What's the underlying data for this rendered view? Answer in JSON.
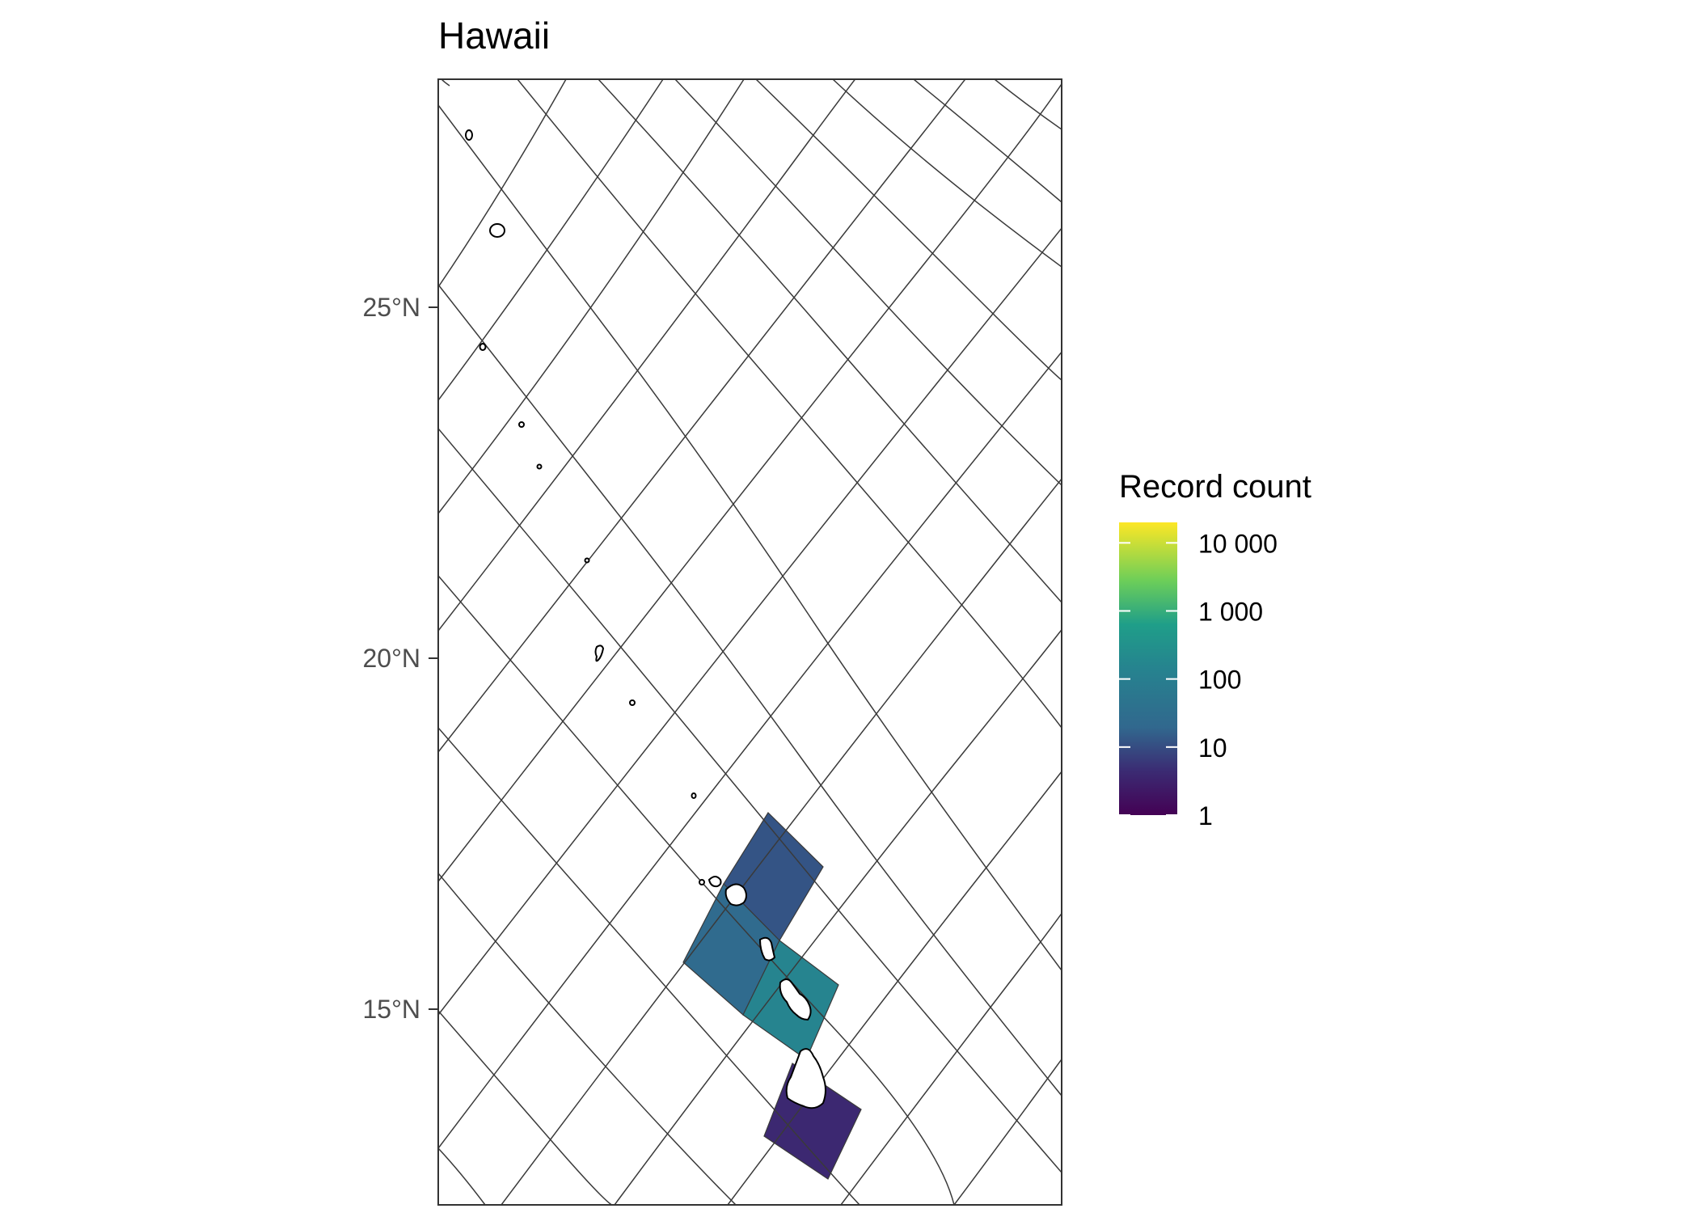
{
  "title": "Hawaii",
  "axes": {
    "y_ticks": [
      {
        "lat": 25,
        "label": "25°N"
      },
      {
        "lat": 20,
        "label": "20°N"
      },
      {
        "lat": 15,
        "label": "15°N"
      }
    ]
  },
  "legend": {
    "title": "Record count",
    "placement": "right",
    "scale": "log10",
    "breaks": [
      {
        "value": 10000,
        "label": "10 000"
      },
      {
        "value": 1000,
        "label": "1 000"
      },
      {
        "value": 100,
        "label": "100"
      },
      {
        "value": 10,
        "label": "10"
      },
      {
        "value": 1,
        "label": "1"
      }
    ],
    "palette": "viridis",
    "colors": [
      "#440154",
      "#31688E",
      "#35B779",
      "#FDE725"
    ]
  },
  "chart_data": {
    "type": "heatmap",
    "title": "Hawaii",
    "fill_label": "Record count",
    "fill_scale": "log10",
    "cells": [
      {
        "name": "cell-oahu-north",
        "count": 12
      },
      {
        "name": "cell-kauai-oahu",
        "count": 25
      },
      {
        "name": "cell-maui",
        "count": 150
      },
      {
        "name": "cell-big-island",
        "count": 4
      }
    ],
    "grid": true
  },
  "colors": {
    "frame": "#333333",
    "graticule": "#3a3a3a",
    "land_outline": "#000000",
    "text": "#000000",
    "axis_text": "#4d4d4d"
  }
}
